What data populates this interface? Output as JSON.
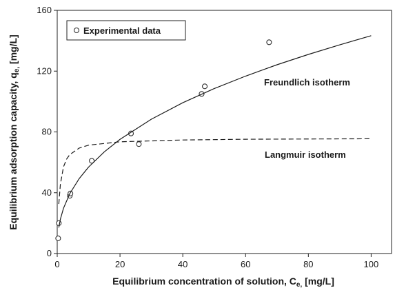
{
  "chart_data": {
    "type": "scatter",
    "xlabel": {
      "text": "Equilibrium concentration of solution, C",
      "sub": "e,",
      "unit": " [mg/L]"
    },
    "ylabel": {
      "text": "Equilibrium adsorption capacity, q",
      "sub": "e,",
      "unit": " [mg/L]"
    },
    "xlim": [
      0,
      106.5
    ],
    "ylim": [
      0,
      160
    ],
    "xticks": [
      0,
      20,
      40,
      60,
      80,
      100
    ],
    "yticks": [
      0,
      40,
      80,
      120,
      160
    ],
    "legend": "upper left",
    "series": [
      {
        "name": "Experimental data",
        "type": "scatter",
        "color": "#333333",
        "x": [
          0.3,
          0.5,
          4,
          4.2,
          11,
          23.5,
          26,
          46,
          47,
          67.5
        ],
        "values": [
          10,
          20,
          38,
          39.5,
          61,
          79,
          72,
          105,
          110,
          139
        ]
      },
      {
        "name": "Freundlich isotherm",
        "type": "line",
        "dashed": false,
        "color": "#1a1a1a",
        "x": [
          0.5,
          1,
          2,
          4,
          7,
          10,
          15,
          20,
          30,
          40,
          50,
          60,
          70,
          80,
          90,
          100
        ],
        "values": [
          17.1,
          22.6,
          29.8,
          39.4,
          49.3,
          56.9,
          66.9,
          75.1,
          88.4,
          99.2,
          108.5,
          116.7,
          124.2,
          131,
          137.3,
          143.3
        ]
      },
      {
        "name": "Langmuir isotherm",
        "type": "line",
        "dashed": true,
        "color": "#1a1a1a",
        "x": [
          0.5,
          1,
          2,
          3,
          4,
          7,
          10,
          20,
          40,
          60,
          100
        ],
        "values": [
          32.6,
          45.6,
          57,
          62.2,
          65.1,
          69.4,
          71.3,
          73.5,
          74.7,
          75.2,
          75.5
        ]
      }
    ]
  }
}
